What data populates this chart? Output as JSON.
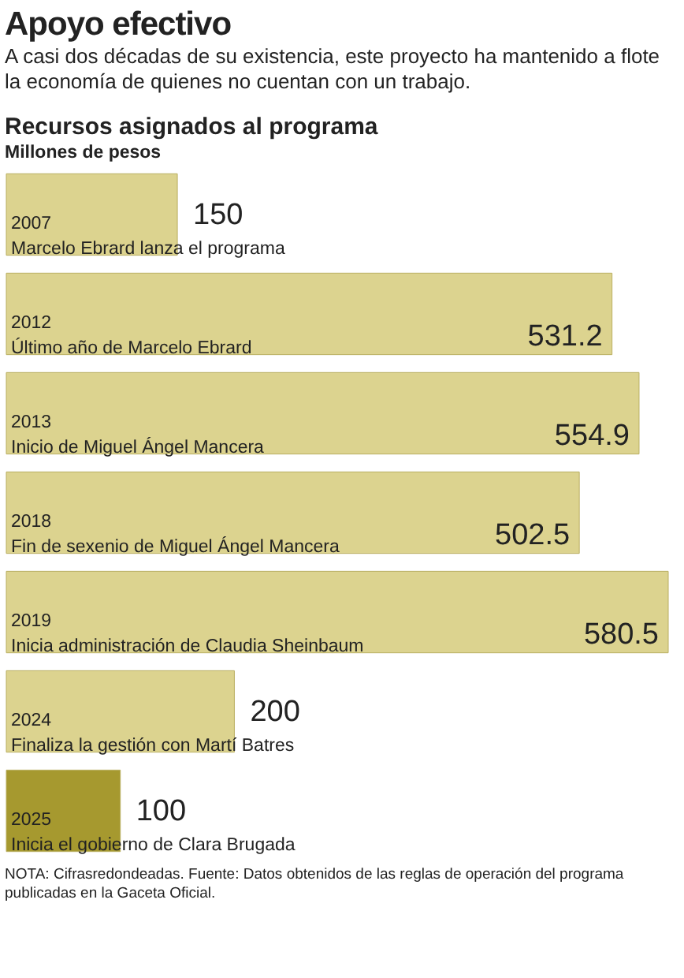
{
  "chart_data": {
    "type": "bar",
    "orientation": "horizontal",
    "title": "Apoyo efectivo",
    "subtitle": "A casi dos décadas de su existencia, este proyecto ha mantenido a flote la economía de quienes no cuentan con un trabajo.",
    "xlabel": "Millones de pesos",
    "annotations": [
      "Recursos asignados al programa",
      "NOTA: Cifrasredondeadas. Fuente: Datos obtenidos de las reglas de operación del programa publicadas en la Gaceta Oficial."
    ],
    "categories": [
      "2007\nMarcelo Ebrard lanza el programa",
      "2012\nÚltimo año de Marcelo Ebrard",
      "2013\nInicio de Miguel Ángel Mancera",
      "2018\nFin de sexenio  de Miguel Ángel Mancera",
      "2019\nInicia administración de Claudia Sheinbaum",
      "2024\nFinaliza la gestión con Martí Batres",
      "2025\nInicia el gobierno de Clara Brugada"
    ],
    "values": [
      150,
      531.2,
      554.9,
      502.5,
      580.5,
      200,
      100
    ],
    "colors": [
      "#dcd38f",
      "#dcd38f",
      "#dcd38f",
      "#dcd38f",
      "#dcd38f",
      "#dcd38f",
      "#a6992f"
    ],
    "data_labels": true
  }
}
